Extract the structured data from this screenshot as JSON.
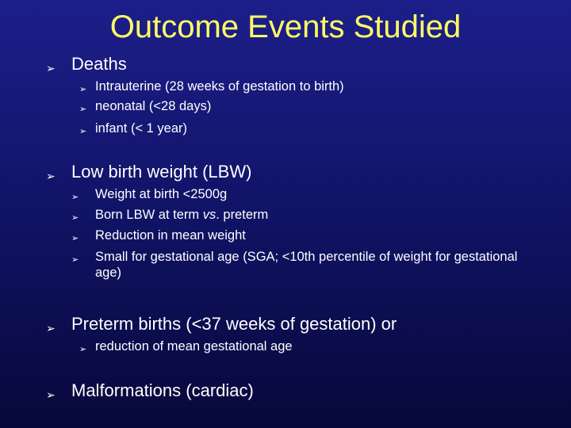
{
  "slide": {
    "title": "Outcome Events Studied",
    "arrow_glyph": "➢",
    "sections": [
      {
        "heading": "Deaths",
        "items": [
          "Intrauterine (28 weeks of gestation to birth)",
          "neonatal (<28 days)",
          "infant (< 1 year)"
        ]
      },
      {
        "heading": "Low birth weight (LBW)",
        "items": [
          "Weight at birth <2500g",
          {
            "before": "Born LBW at term ",
            "em": "vs",
            "after": ". preterm"
          },
          "Reduction in mean weight",
          "Small for gestational age (SGA; <10th percentile of weight for gestational age)"
        ]
      },
      {
        "heading": "Preterm births (<37 weeks of gestation) or",
        "items": [
          "reduction of mean gestational age"
        ]
      },
      {
        "heading": "Malformations (cardiac)",
        "items": []
      }
    ],
    "colors": {
      "title": "#ffff66",
      "text": "#ffffff",
      "background_top": "#1d1f8a",
      "background_bottom": "#07083a"
    },
    "icons": {
      "bullet": "arrowhead-bullet-icon"
    }
  }
}
